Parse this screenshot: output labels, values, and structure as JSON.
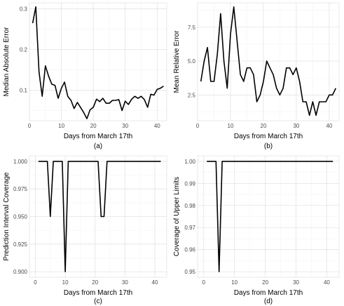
{
  "chart_data": [
    {
      "type": "line",
      "panel_label": "(a)",
      "xlabel": "Days from March 17th",
      "ylabel": "Median Absolute Error",
      "xlim": [
        0,
        43
      ],
      "ylim": [
        0.025,
        0.315
      ],
      "x_ticks": [
        0,
        10,
        20,
        30,
        40
      ],
      "y_ticks": [
        0.1,
        0.2,
        0.3
      ],
      "y_tick_labels": [
        "0.1",
        "0.2",
        "0.3"
      ],
      "x": [
        1,
        2,
        3,
        4,
        5,
        6,
        7,
        8,
        9,
        10,
        11,
        12,
        13,
        14,
        15,
        16,
        17,
        18,
        19,
        20,
        21,
        22,
        23,
        24,
        25,
        26,
        27,
        28,
        29,
        30,
        31,
        32,
        33,
        34,
        35,
        36,
        37,
        38,
        39,
        40,
        41,
        42
      ],
      "y": [
        0.265,
        0.305,
        0.145,
        0.085,
        0.16,
        0.135,
        0.115,
        0.112,
        0.08,
        0.105,
        0.12,
        0.085,
        0.075,
        0.055,
        0.07,
        0.058,
        0.045,
        0.03,
        0.052,
        0.058,
        0.078,
        0.072,
        0.08,
        0.068,
        0.068,
        0.075,
        0.075,
        0.077,
        0.05,
        0.073,
        0.065,
        0.078,
        0.085,
        0.08,
        0.085,
        0.077,
        0.058,
        0.09,
        0.088,
        0.102,
        0.105,
        0.11
      ]
    },
    {
      "type": "line",
      "panel_label": "(b)",
      "xlabel": "Days from March 17th",
      "ylabel": "Mean Relative Error",
      "xlim": [
        0,
        43
      ],
      "ylim": [
        0.6,
        9.3
      ],
      "x_ticks": [
        0,
        10,
        20,
        30,
        40
      ],
      "y_ticks": [
        2.5,
        5.0,
        7.5
      ],
      "y_tick_labels": [
        "2.5",
        "5.0",
        "7.5"
      ],
      "x": [
        1,
        2,
        3,
        4,
        5,
        6,
        7,
        8,
        9,
        10,
        11,
        12,
        13,
        14,
        15,
        16,
        17,
        18,
        19,
        20,
        21,
        22,
        23,
        24,
        25,
        26,
        27,
        28,
        29,
        30,
        31,
        32,
        33,
        34,
        35,
        36,
        37,
        38,
        39,
        40,
        41,
        42
      ],
      "y": [
        3.5,
        5.0,
        6.0,
        3.5,
        3.5,
        5.5,
        8.5,
        5.0,
        3.0,
        7.0,
        9.0,
        6.5,
        4.0,
        3.5,
        4.5,
        4.5,
        4.0,
        2.0,
        2.5,
        3.5,
        5.0,
        4.5,
        4.0,
        3.0,
        2.5,
        3.0,
        4.5,
        4.5,
        4.0,
        4.5,
        3.5,
        2.0,
        2.0,
        1.0,
        2.0,
        1.0,
        2.0,
        2.0,
        2.0,
        2.5,
        2.5,
        3.0
      ]
    },
    {
      "type": "line",
      "panel_label": "(c)",
      "xlabel": "Days from March 17th",
      "ylabel": "Prediction Interval Coverage",
      "xlim": [
        -2,
        44
      ],
      "ylim": [
        0.895,
        1.005
      ],
      "x_ticks": [
        0,
        10,
        20,
        30,
        40
      ],
      "y_ticks": [
        0.9,
        0.925,
        0.95,
        0.975,
        1.0
      ],
      "y_tick_labels": [
        "0.900",
        "0.925",
        "0.950",
        "0.975",
        "1.000"
      ],
      "x": [
        1,
        2,
        3,
        4,
        5,
        6,
        7,
        8,
        9,
        10,
        11,
        12,
        13,
        14,
        15,
        16,
        17,
        18,
        19,
        20,
        21,
        22,
        23,
        24,
        25,
        26,
        27,
        28,
        29,
        30,
        31,
        32,
        33,
        34,
        35,
        36,
        37,
        38,
        39,
        40,
        41,
        42
      ],
      "y": [
        1,
        1,
        1,
        1,
        0.95,
        1,
        1,
        1,
        1,
        0.9,
        1,
        1,
        1,
        1,
        1,
        1,
        1,
        1,
        1,
        1,
        1,
        0.95,
        0.95,
        1,
        1,
        1,
        1,
        1,
        1,
        1,
        1,
        1,
        1,
        1,
        1,
        1,
        1,
        1,
        1,
        1,
        1,
        1
      ]
    },
    {
      "type": "line",
      "panel_label": "(d)",
      "xlabel": "Days from March 17th",
      "ylabel": "Coverage of Upper Limits",
      "xlim": [
        -2,
        44
      ],
      "ylim": [
        0.9475,
        1.0025
      ],
      "x_ticks": [
        0,
        10,
        20,
        30,
        40
      ],
      "y_ticks": [
        0.95,
        0.96,
        0.97,
        0.98,
        0.99,
        1.0
      ],
      "y_tick_labels": [
        "0.95",
        "0.96",
        "0.97",
        "0.98",
        "0.99",
        "1.00"
      ],
      "x": [
        1,
        2,
        3,
        4,
        5,
        6,
        7,
        8,
        9,
        10,
        11,
        12,
        13,
        14,
        15,
        16,
        17,
        18,
        19,
        20,
        21,
        22,
        23,
        24,
        25,
        26,
        27,
        28,
        29,
        30,
        31,
        32,
        33,
        34,
        35,
        36,
        37,
        38,
        39,
        40,
        41,
        42
      ],
      "y": [
        1,
        1,
        1,
        1,
        0.95,
        1,
        1,
        1,
        1,
        1,
        1,
        1,
        1,
        1,
        1,
        1,
        1,
        1,
        1,
        1,
        1,
        1,
        1,
        1,
        1,
        1,
        1,
        1,
        1,
        1,
        1,
        1,
        1,
        1,
        1,
        1,
        1,
        1,
        1,
        1,
        1,
        1
      ]
    }
  ]
}
